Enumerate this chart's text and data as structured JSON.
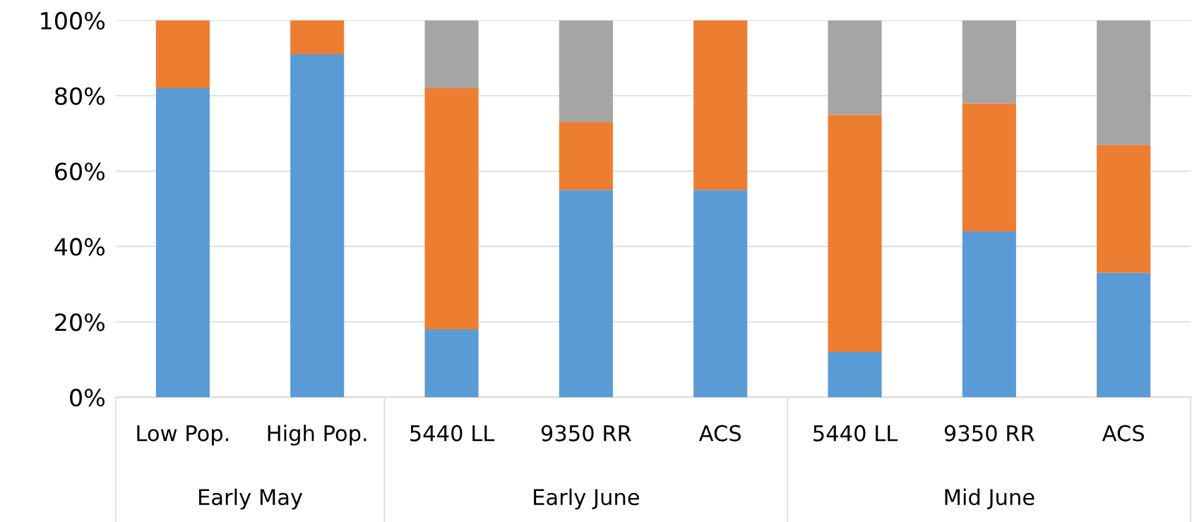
{
  "chart_data": {
    "type": "bar",
    "stacked": true,
    "categories": [
      "Low Pop.",
      "High Pop.",
      "5440 LL",
      "9350 RR",
      "ACS",
      "5440 LL",
      "9350 RR",
      "ACS"
    ],
    "series": [
      {
        "color": "#5b9bd5",
        "values": [
          82,
          91,
          18,
          55,
          55,
          12,
          44,
          33
        ]
      },
      {
        "color": "#ed7d31",
        "values": [
          18,
          9,
          64,
          18,
          45,
          63,
          34,
          34
        ]
      },
      {
        "color": "#a5a5a5",
        "values": [
          null,
          null,
          18,
          27,
          null,
          25,
          22,
          33
        ]
      }
    ],
    "ylim": [
      0,
      100
    ],
    "yticks": [
      {
        "value": 0,
        "label": "0%"
      },
      {
        "value": 20,
        "label": "20%"
      },
      {
        "value": 40,
        "label": "40%"
      },
      {
        "value": 60,
        "label": "60%"
      },
      {
        "value": 80,
        "label": "80%"
      },
      {
        "value": 100,
        "label": "100%"
      }
    ],
    "grid": "y",
    "annotations": [
      "Early May",
      "Early June",
      "Mid June"
    ]
  }
}
